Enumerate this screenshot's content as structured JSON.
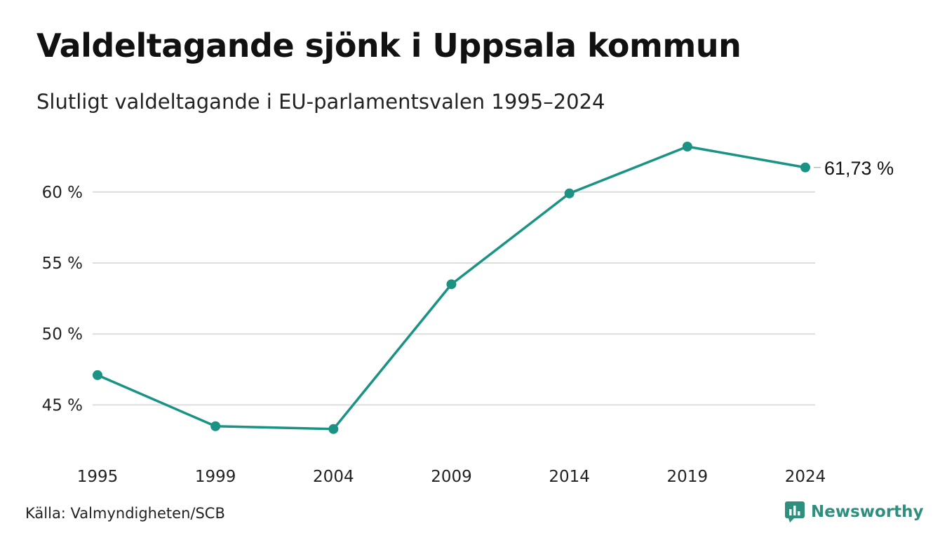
{
  "header": {
    "title": "Valdeltagande sjönk i Uppsala kommun",
    "subtitle": "Slutligt valdeltagande i EU-parlamentsvalen 1995–2024"
  },
  "footer": {
    "source": "Källa: Valmyndigheten/SCB",
    "brand": "Newsworthy"
  },
  "colors": {
    "line": "#1a9385",
    "grid": "#dddddd",
    "brand": "#2f8f7e"
  },
  "chart_data": {
    "type": "line",
    "title": "Valdeltagande sjönk i Uppsala kommun",
    "subtitle": "Slutligt valdeltagande i EU-parlamentsvalen 1995–2024",
    "categories": [
      "1995",
      "1999",
      "2004",
      "2009",
      "2014",
      "2019",
      "2024"
    ],
    "series": [
      {
        "values": [
          47.1,
          43.5,
          43.3,
          53.5,
          59.9,
          63.2,
          61.73
        ]
      }
    ],
    "y_ticks": [
      45,
      50,
      55,
      60
    ],
    "y_tick_labels": [
      "45 %",
      "50 %",
      "55 %",
      "60 %"
    ],
    "ylim": [
      42.5,
      63.2
    ],
    "grid": true,
    "end_label": "61,73 %"
  }
}
